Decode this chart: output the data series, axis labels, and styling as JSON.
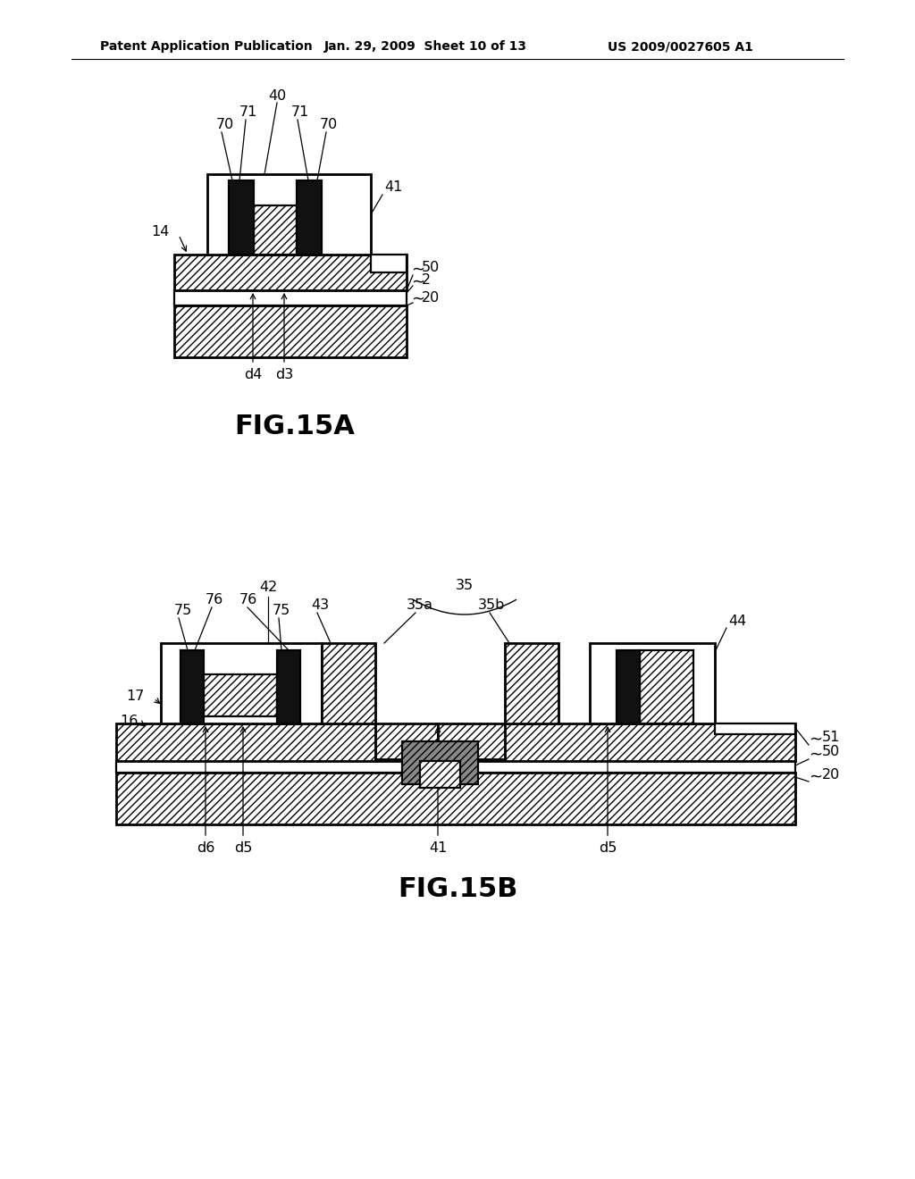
{
  "bg_color": "#ffffff",
  "header_left": "Patent Application Publication",
  "header_mid": "Jan. 29, 2009  Sheet 10 of 13",
  "header_right": "US 2009/0027605 A1",
  "fig15a_label": "FIG.15A",
  "fig15b_label": "FIG.15B"
}
